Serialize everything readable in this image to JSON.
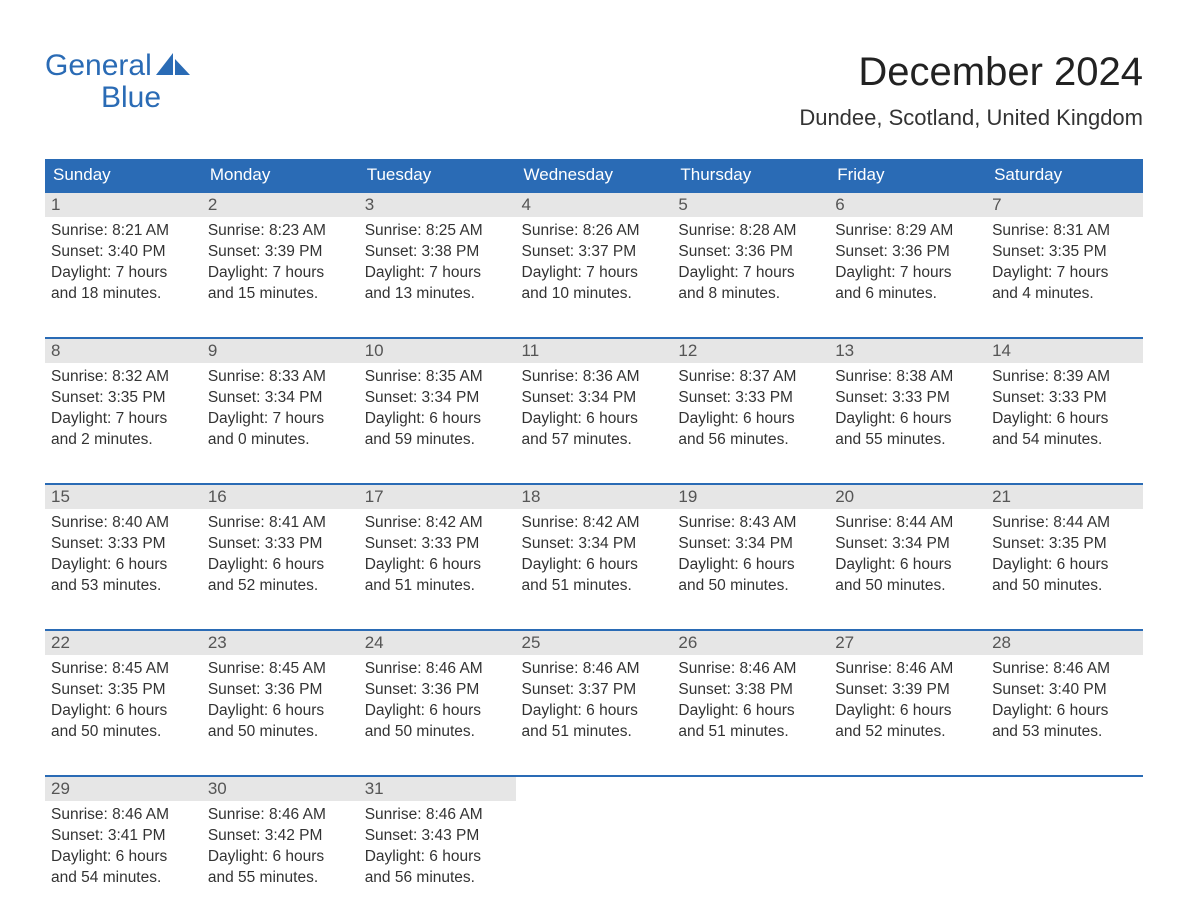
{
  "logo": {
    "line1": "General",
    "line2": "Blue"
  },
  "title": "December 2024",
  "location": "Dundee, Scotland, United Kingdom",
  "colors": {
    "header_bg": "#2a6bb5",
    "header_text": "#ffffff",
    "daynum_bg": "#e6e6e6",
    "border": "#2a6bb5",
    "body_text": "#333333",
    "logo": "#2a6bb5"
  },
  "day_names": [
    "Sunday",
    "Monday",
    "Tuesday",
    "Wednesday",
    "Thursday",
    "Friday",
    "Saturday"
  ],
  "weeks": [
    [
      {
        "n": "1",
        "sr": "Sunrise: 8:21 AM",
        "ss": "Sunset: 3:40 PM",
        "d1": "Daylight: 7 hours",
        "d2": "and 18 minutes."
      },
      {
        "n": "2",
        "sr": "Sunrise: 8:23 AM",
        "ss": "Sunset: 3:39 PM",
        "d1": "Daylight: 7 hours",
        "d2": "and 15 minutes."
      },
      {
        "n": "3",
        "sr": "Sunrise: 8:25 AM",
        "ss": "Sunset: 3:38 PM",
        "d1": "Daylight: 7 hours",
        "d2": "and 13 minutes."
      },
      {
        "n": "4",
        "sr": "Sunrise: 8:26 AM",
        "ss": "Sunset: 3:37 PM",
        "d1": "Daylight: 7 hours",
        "d2": "and 10 minutes."
      },
      {
        "n": "5",
        "sr": "Sunrise: 8:28 AM",
        "ss": "Sunset: 3:36 PM",
        "d1": "Daylight: 7 hours",
        "d2": "and 8 minutes."
      },
      {
        "n": "6",
        "sr": "Sunrise: 8:29 AM",
        "ss": "Sunset: 3:36 PM",
        "d1": "Daylight: 7 hours",
        "d2": "and 6 minutes."
      },
      {
        "n": "7",
        "sr": "Sunrise: 8:31 AM",
        "ss": "Sunset: 3:35 PM",
        "d1": "Daylight: 7 hours",
        "d2": "and 4 minutes."
      }
    ],
    [
      {
        "n": "8",
        "sr": "Sunrise: 8:32 AM",
        "ss": "Sunset: 3:35 PM",
        "d1": "Daylight: 7 hours",
        "d2": "and 2 minutes."
      },
      {
        "n": "9",
        "sr": "Sunrise: 8:33 AM",
        "ss": "Sunset: 3:34 PM",
        "d1": "Daylight: 7 hours",
        "d2": "and 0 minutes."
      },
      {
        "n": "10",
        "sr": "Sunrise: 8:35 AM",
        "ss": "Sunset: 3:34 PM",
        "d1": "Daylight: 6 hours",
        "d2": "and 59 minutes."
      },
      {
        "n": "11",
        "sr": "Sunrise: 8:36 AM",
        "ss": "Sunset: 3:34 PM",
        "d1": "Daylight: 6 hours",
        "d2": "and 57 minutes."
      },
      {
        "n": "12",
        "sr": "Sunrise: 8:37 AM",
        "ss": "Sunset: 3:33 PM",
        "d1": "Daylight: 6 hours",
        "d2": "and 56 minutes."
      },
      {
        "n": "13",
        "sr": "Sunrise: 8:38 AM",
        "ss": "Sunset: 3:33 PM",
        "d1": "Daylight: 6 hours",
        "d2": "and 55 minutes."
      },
      {
        "n": "14",
        "sr": "Sunrise: 8:39 AM",
        "ss": "Sunset: 3:33 PM",
        "d1": "Daylight: 6 hours",
        "d2": "and 54 minutes."
      }
    ],
    [
      {
        "n": "15",
        "sr": "Sunrise: 8:40 AM",
        "ss": "Sunset: 3:33 PM",
        "d1": "Daylight: 6 hours",
        "d2": "and 53 minutes."
      },
      {
        "n": "16",
        "sr": "Sunrise: 8:41 AM",
        "ss": "Sunset: 3:33 PM",
        "d1": "Daylight: 6 hours",
        "d2": "and 52 minutes."
      },
      {
        "n": "17",
        "sr": "Sunrise: 8:42 AM",
        "ss": "Sunset: 3:33 PM",
        "d1": "Daylight: 6 hours",
        "d2": "and 51 minutes."
      },
      {
        "n": "18",
        "sr": "Sunrise: 8:42 AM",
        "ss": "Sunset: 3:34 PM",
        "d1": "Daylight: 6 hours",
        "d2": "and 51 minutes."
      },
      {
        "n": "19",
        "sr": "Sunrise: 8:43 AM",
        "ss": "Sunset: 3:34 PM",
        "d1": "Daylight: 6 hours",
        "d2": "and 50 minutes."
      },
      {
        "n": "20",
        "sr": "Sunrise: 8:44 AM",
        "ss": "Sunset: 3:34 PM",
        "d1": "Daylight: 6 hours",
        "d2": "and 50 minutes."
      },
      {
        "n": "21",
        "sr": "Sunrise: 8:44 AM",
        "ss": "Sunset: 3:35 PM",
        "d1": "Daylight: 6 hours",
        "d2": "and 50 minutes."
      }
    ],
    [
      {
        "n": "22",
        "sr": "Sunrise: 8:45 AM",
        "ss": "Sunset: 3:35 PM",
        "d1": "Daylight: 6 hours",
        "d2": "and 50 minutes."
      },
      {
        "n": "23",
        "sr": "Sunrise: 8:45 AM",
        "ss": "Sunset: 3:36 PM",
        "d1": "Daylight: 6 hours",
        "d2": "and 50 minutes."
      },
      {
        "n": "24",
        "sr": "Sunrise: 8:46 AM",
        "ss": "Sunset: 3:36 PM",
        "d1": "Daylight: 6 hours",
        "d2": "and 50 minutes."
      },
      {
        "n": "25",
        "sr": "Sunrise: 8:46 AM",
        "ss": "Sunset: 3:37 PM",
        "d1": "Daylight: 6 hours",
        "d2": "and 51 minutes."
      },
      {
        "n": "26",
        "sr": "Sunrise: 8:46 AM",
        "ss": "Sunset: 3:38 PM",
        "d1": "Daylight: 6 hours",
        "d2": "and 51 minutes."
      },
      {
        "n": "27",
        "sr": "Sunrise: 8:46 AM",
        "ss": "Sunset: 3:39 PM",
        "d1": "Daylight: 6 hours",
        "d2": "and 52 minutes."
      },
      {
        "n": "28",
        "sr": "Sunrise: 8:46 AM",
        "ss": "Sunset: 3:40 PM",
        "d1": "Daylight: 6 hours",
        "d2": "and 53 minutes."
      }
    ],
    [
      {
        "n": "29",
        "sr": "Sunrise: 8:46 AM",
        "ss": "Sunset: 3:41 PM",
        "d1": "Daylight: 6 hours",
        "d2": "and 54 minutes."
      },
      {
        "n": "30",
        "sr": "Sunrise: 8:46 AM",
        "ss": "Sunset: 3:42 PM",
        "d1": "Daylight: 6 hours",
        "d2": "and 55 minutes."
      },
      {
        "n": "31",
        "sr": "Sunrise: 8:46 AM",
        "ss": "Sunset: 3:43 PM",
        "d1": "Daylight: 6 hours",
        "d2": "and 56 minutes."
      },
      null,
      null,
      null,
      null
    ]
  ]
}
